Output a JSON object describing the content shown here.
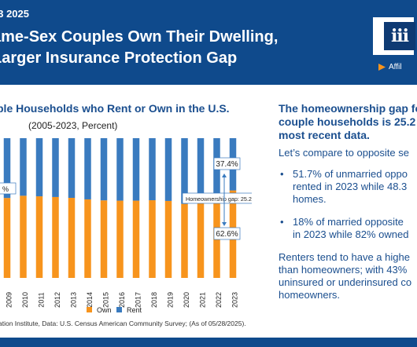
{
  "header": {
    "date": "03 2025",
    "title_line1": "ame-Sex Couples Own Their Dwelling,",
    "title_line2": "Larger Insurance Protection Gap",
    "logo_text": "iii",
    "affiliation": "Affil"
  },
  "chart_data": {
    "type": "bar",
    "title": "ple Households who Rent or Own in the U.S.",
    "subtitle": "(2005-2023, Percent)",
    "categories": [
      "2009",
      "2010",
      "2011",
      "2012",
      "2013",
      "2014",
      "2015",
      "2016",
      "2017",
      "2018",
      "2019",
      "2020",
      "2021",
      "2022",
      "2023"
    ],
    "series": [
      {
        "name": "Own",
        "color": "#f7941d",
        "values": [
          57.2,
          58.8,
          58.4,
          57.9,
          57.3,
          56.2,
          55.5,
          55.3,
          55.3,
          55.6,
          55.1,
          53.0,
          59.5,
          60.4,
          62.6
        ]
      },
      {
        "name": "Rent",
        "color": "#3a7bbf",
        "values": [
          42.8,
          41.2,
          41.6,
          42.1,
          42.7,
          43.8,
          44.5,
          44.7,
          44.7,
          44.4,
          44.9,
          47.0,
          40.5,
          39.6,
          37.4
        ]
      }
    ],
    "ylim": [
      0,
      100
    ],
    "stacked": true,
    "legend_position": "bottom",
    "annotations": {
      "left_partial": "%",
      "rent_2023": "37.4%",
      "own_2023": "62.6%",
      "gap": "Homeownership gap: 25.2%"
    },
    "source": "ation Institute, Data: U.S. Census American Community Survey; (As of 05/28/2025)."
  },
  "right_panel": {
    "headline_lines": [
      "The homeownership gap fo",
      "couple households is 25.2",
      "most recent data."
    ],
    "intro": "Let’s compare to opposite se",
    "bullets": [
      {
        "lines": [
          "51.7% of unmarried oppo",
          "rented in 2023 while 48.3",
          "homes."
        ]
      },
      {
        "lines": [
          "18% of married opposite",
          "in 2023 while 82% owned"
        ]
      }
    ],
    "closing_lines": [
      "Renters tend to have a highe",
      "than homeowners; with 43%",
      "uninsured or underinsured co",
      "homeowners."
    ]
  }
}
